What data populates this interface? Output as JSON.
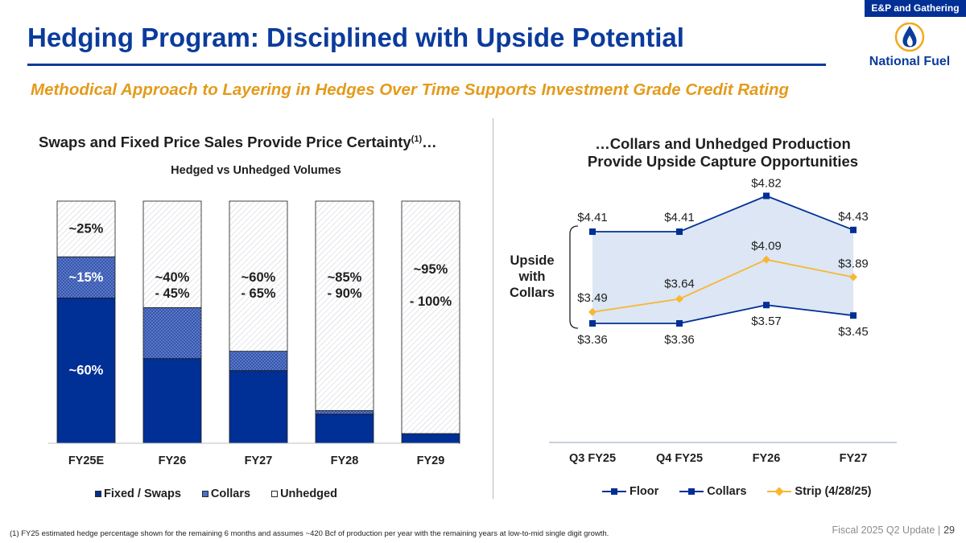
{
  "tag": "E&P and Gathering",
  "title": "Hedging Program: Disciplined with Upside Potential",
  "subtitle": "Methodical Approach to Layering in Hedges Over Time Supports Investment Grade Credit Rating",
  "logo": {
    "text": "National Fuel",
    "icon": "flame-drop-icon"
  },
  "left_panel": {
    "heading": "Swaps and Fixed Price Sales Provide Price Certainty",
    "heading_sup": "(1)",
    "heading_suffix": "…",
    "subheading": "Hedged vs Unhedged Volumes"
  },
  "right_panel": {
    "heading_line1": "…Collars and Unhedged Production",
    "heading_line2": "Provide Upside Capture Opportunities",
    "bracket_label_lines": [
      "Upside",
      "with",
      "Collars"
    ]
  },
  "footnote": "(1) FY25 estimated hedge percentage shown for the remaining 6 months and assumes ~420 Bcf of production per year with the remaining years at low-to-mid single digit growth.",
  "footer": {
    "text": "Fiscal 2025 Q2 Update",
    "separator": "|",
    "page": "29"
  },
  "colors": {
    "fixed": "#002f95",
    "collars": "#4a6fc6",
    "unhedged": "#ffffff",
    "strip": "#f7b733",
    "band": "#dce6f4",
    "title": "#0b3b9c",
    "subtitle": "#e39b1b"
  },
  "chart_data": [
    {
      "type": "bar",
      "stacked": true,
      "title": "Hedged vs Unhedged Volumes",
      "categories": [
        "FY25E",
        "FY26",
        "FY27",
        "FY28",
        "FY29"
      ],
      "series": [
        {
          "name": "Fixed / Swaps",
          "values": [
            60,
            35,
            30,
            12,
            4
          ]
        },
        {
          "name": "Collars",
          "values": [
            17,
            21,
            8,
            1.5,
            0
          ]
        },
        {
          "name": "Unhedged",
          "values": [
            23,
            44,
            62,
            86.5,
            96
          ]
        }
      ],
      "ylim": [
        0,
        100
      ],
      "annotations": [
        {
          "category": "FY25E",
          "series": "Unhedged",
          "lines": [
            "~25%"
          ]
        },
        {
          "category": "FY25E",
          "series": "Collars",
          "lines": [
            "~15%"
          ]
        },
        {
          "category": "FY25E",
          "series": "Fixed / Swaps",
          "lines": [
            "~60%"
          ]
        },
        {
          "category": "FY26",
          "series": "Unhedged",
          "lines": [
            "~40%",
            "- 45%"
          ]
        },
        {
          "category": "FY27",
          "series": "Unhedged",
          "lines": [
            "~60%",
            "- 65%"
          ]
        },
        {
          "category": "FY28",
          "series": "Unhedged",
          "lines": [
            "~85%",
            "- 90%"
          ]
        },
        {
          "category": "FY29",
          "series": "Unhedged",
          "lines": [
            "~95%",
            "",
            "- 100%"
          ]
        }
      ],
      "legend": "bottom",
      "grid": false
    },
    {
      "type": "line",
      "categories": [
        "Q3 FY25",
        "Q4 FY25",
        "FY26",
        "FY27"
      ],
      "series": [
        {
          "name": "Floor",
          "values": [
            3.36,
            3.36,
            3.57,
            3.45
          ],
          "labels": [
            "$3.36",
            "$3.36",
            "$3.57",
            "$3.45"
          ]
        },
        {
          "name": "Collars",
          "values": [
            4.41,
            4.41,
            4.82,
            4.43
          ],
          "labels": [
            "$4.41",
            "$4.41",
            "$4.82",
            "$4.43"
          ]
        },
        {
          "name": "Strip (4/28/25)",
          "values": [
            3.49,
            3.64,
            4.09,
            3.89
          ],
          "labels": [
            "$3.49",
            "$3.64",
            "$4.09",
            "$3.89"
          ]
        }
      ],
      "band_between": [
        "Floor",
        "Collars"
      ],
      "ylim": [
        2.0,
        5.0
      ],
      "legend": "bottom",
      "grid": false
    }
  ]
}
